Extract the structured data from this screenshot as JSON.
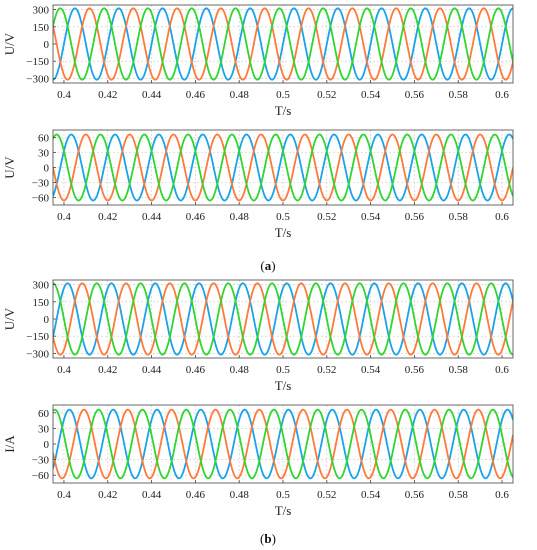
{
  "figure": {
    "captions": [
      {
        "before": "(",
        "letter": "a",
        "after": ")"
      },
      {
        "before": "(",
        "letter": "b",
        "after": ")"
      }
    ]
  },
  "colors": {
    "phase1": "#1aa3e8",
    "phase2": "#ff7a3a",
    "phase3": "#2fd62f"
  },
  "chart_data": [
    {
      "type": "line",
      "panel": "a-top",
      "xlabel": "T/s",
      "ylabel": "U/V",
      "xlim": [
        0.395,
        0.605
      ],
      "ylim": [
        -340,
        340
      ],
      "xticks": [
        0.4,
        0.42,
        0.44,
        0.46,
        0.48,
        0.5,
        0.52,
        0.54,
        0.56,
        0.58,
        0.6
      ],
      "xtick_labels": [
        "0.4",
        "0.42",
        "0.44",
        "0.46",
        "0.48",
        "0.5",
        "0.52",
        "0.54",
        "0.56",
        "0.58",
        "0.6"
      ],
      "yticks": [
        300,
        150,
        0,
        -150,
        -300
      ],
      "ytick_labels": [
        "300",
        "150",
        "0",
        "−150",
        "−300"
      ],
      "grid": true,
      "waveform": {
        "frequency_hz": 50,
        "amplitude": 311
      },
      "series": [
        {
          "color": "#1aa3e8",
          "phase_deg": 0
        },
        {
          "color": "#ff7a3a",
          "phase_deg": -120
        },
        {
          "color": "#2fd62f",
          "phase_deg": 120
        }
      ]
    },
    {
      "type": "line",
      "panel": "a-bottom",
      "xlabel": "T/s",
      "ylabel": "U/V",
      "xlim": [
        0.395,
        0.605
      ],
      "ylim": [
        -75,
        75
      ],
      "xticks": [
        0.4,
        0.42,
        0.44,
        0.46,
        0.48,
        0.5,
        0.52,
        0.54,
        0.56,
        0.58,
        0.6
      ],
      "xtick_labels": [
        "0.4",
        "0.42",
        "0.44",
        "0.46",
        "0.48",
        "0.5",
        "0.52",
        "0.54",
        "0.56",
        "0.58",
        "0.6"
      ],
      "yticks": [
        60,
        30,
        0,
        -30,
        -60
      ],
      "ytick_labels": [
        "60",
        "30",
        "0",
        "−30",
        "−60"
      ],
      "grid": true,
      "waveform": {
        "frequency_hz": 50,
        "amplitude": 66
      },
      "series": [
        {
          "color": "#1aa3e8",
          "phase_deg": 30
        },
        {
          "color": "#ff7a3a",
          "phase_deg": -90
        },
        {
          "color": "#2fd62f",
          "phase_deg": 150
        }
      ]
    },
    {
      "type": "line",
      "panel": "b-top",
      "xlabel": "T/s",
      "ylabel": "U/V",
      "xlim": [
        0.395,
        0.605
      ],
      "ylim": [
        -340,
        340
      ],
      "xticks": [
        0.4,
        0.42,
        0.44,
        0.46,
        0.48,
        0.5,
        0.52,
        0.54,
        0.56,
        0.58,
        0.6
      ],
      "xtick_labels": [
        "0.4",
        "0.42",
        "0.44",
        "0.46",
        "0.48",
        "0.5",
        "0.52",
        "0.54",
        "0.56",
        "0.58",
        "0.6"
      ],
      "yticks": [
        300,
        150,
        0,
        -150,
        -300
      ],
      "ytick_labels": [
        "300",
        "150",
        "0",
        "−150",
        "−300"
      ],
      "grid": true,
      "waveform": {
        "frequency_hz": 50,
        "amplitude": 311
      },
      "series": [
        {
          "color": "#1aa3e8",
          "phase_deg": 60
        },
        {
          "color": "#ff7a3a",
          "phase_deg": -60
        },
        {
          "color": "#2fd62f",
          "phase_deg": 180
        }
      ]
    },
    {
      "type": "line",
      "panel": "b-bottom",
      "xlabel": "T/s",
      "ylabel": "I/A",
      "xlim": [
        0.395,
        0.605
      ],
      "ylim": [
        -75,
        75
      ],
      "xticks": [
        0.4,
        0.42,
        0.44,
        0.46,
        0.48,
        0.5,
        0.52,
        0.54,
        0.56,
        0.58,
        0.6
      ],
      "xtick_labels": [
        "0.4",
        "0.42",
        "0.44",
        "0.46",
        "0.48",
        "0.5",
        "0.52",
        "0.54",
        "0.56",
        "0.58",
        "0.6"
      ],
      "yticks": [
        60,
        30,
        0,
        -30,
        -60
      ],
      "ytick_labels": [
        "60",
        "30",
        "0",
        "−30",
        "−60"
      ],
      "grid": true,
      "waveform": {
        "frequency_hz": 50,
        "amplitude": 66
      },
      "series": [
        {
          "color": "#1aa3e8",
          "phase_deg": 45
        },
        {
          "color": "#ff7a3a",
          "phase_deg": -75
        },
        {
          "color": "#2fd62f",
          "phase_deg": 165
        }
      ]
    }
  ]
}
